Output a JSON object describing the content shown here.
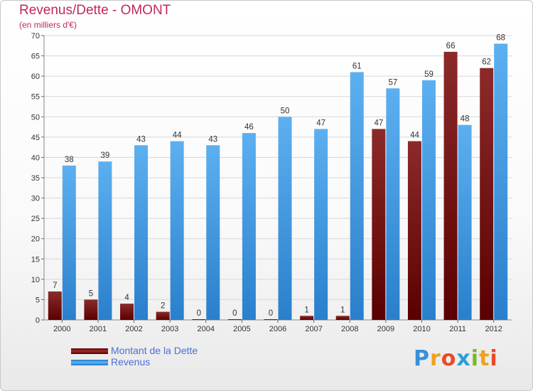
{
  "header": {
    "title": "Revenus/Dette - OMONT",
    "subtitle": "(en milliers d'€)"
  },
  "chart_data": {
    "type": "bar",
    "categories": [
      "2000",
      "2001",
      "2002",
      "2003",
      "2004",
      "2005",
      "2006",
      "2007",
      "2008",
      "2009",
      "2010",
      "2011",
      "2012"
    ],
    "series": [
      {
        "name": "Montant de la Dette",
        "color": "#7a0c0c",
        "values": [
          7,
          5,
          4,
          2,
          0,
          0,
          0,
          1,
          1,
          47,
          44,
          66,
          62
        ]
      },
      {
        "name": "Revenus",
        "color": "#3d9be6",
        "values": [
          38,
          39,
          43,
          44,
          43,
          46,
          50,
          47,
          61,
          57,
          59,
          48,
          68
        ]
      }
    ],
    "ylim": [
      0,
      70
    ],
    "yticks": [
      0,
      5,
      10,
      15,
      20,
      25,
      30,
      35,
      40,
      45,
      50,
      55,
      60,
      65,
      70
    ],
    "grid": true,
    "legend": "bottom-left"
  },
  "legend": {
    "items": [
      {
        "label": "Montant de la Dette",
        "color": "#7a0c0c"
      },
      {
        "label": "Revenus",
        "color": "#3d9be6"
      }
    ]
  },
  "logo": {
    "text": "Proxiti",
    "letters": [
      {
        "ch": "P",
        "color": "#3a8fd8"
      },
      {
        "ch": "r",
        "color": "#f0a020"
      },
      {
        "ch": "o",
        "color": "#e84a2a"
      },
      {
        "ch": "x",
        "color": "#2aa0d8"
      },
      {
        "ch": "i",
        "color": "#7ab828"
      },
      {
        "ch": "t",
        "color": "#f0a020"
      },
      {
        "ch": "i",
        "color": "#e84a2a"
      }
    ]
  }
}
